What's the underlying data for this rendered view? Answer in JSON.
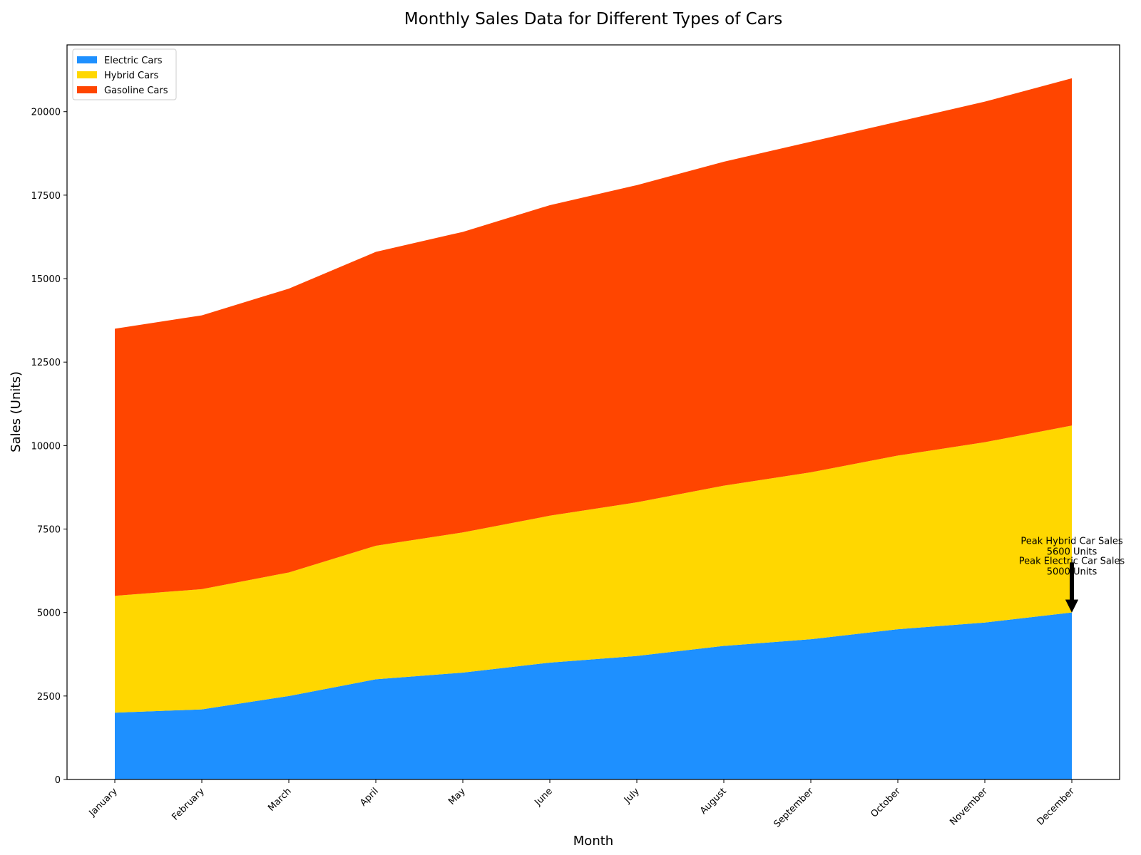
{
  "chart_data": {
    "type": "area",
    "stacked": true,
    "title": "Monthly Sales Data for Different Types of Cars",
    "xlabel": "Month",
    "ylabel": "Sales (Units)",
    "categories": [
      "January",
      "February",
      "March",
      "April",
      "May",
      "June",
      "July",
      "August",
      "September",
      "October",
      "November",
      "December"
    ],
    "ylim": [
      0,
      22000
    ],
    "yticks": [
      0,
      2500,
      5000,
      7500,
      10000,
      12500,
      15000,
      17500,
      20000
    ],
    "grid": false,
    "legend_position": "top-left",
    "series": [
      {
        "name": "Electric Cars",
        "color": "#1e90ff",
        "values": [
          2000,
          2100,
          2500,
          3000,
          3200,
          3500,
          3700,
          4000,
          4200,
          4500,
          4700,
          5000
        ]
      },
      {
        "name": "Hybrid Cars",
        "color": "#ffd700",
        "values": [
          3500,
          3600,
          3700,
          4000,
          4200,
          4400,
          4600,
          4800,
          5000,
          5200,
          5400,
          5600
        ]
      },
      {
        "name": "Gasoline Cars",
        "color": "#ff4500",
        "values": [
          8000,
          8200,
          8500,
          8800,
          9000,
          9300,
          9500,
          9700,
          9900,
          10000,
          10200,
          10400
        ]
      }
    ],
    "annotations": [
      {
        "line1": "Peak Hybrid Car Sales",
        "line2": "5600 Units",
        "category": "December",
        "y": 5000,
        "text_y": 6800
      },
      {
        "line1": "Peak Electric Car Sales",
        "line2": "5000 Units",
        "category": "December",
        "y": 5000,
        "text_y": 6200
      }
    ]
  }
}
